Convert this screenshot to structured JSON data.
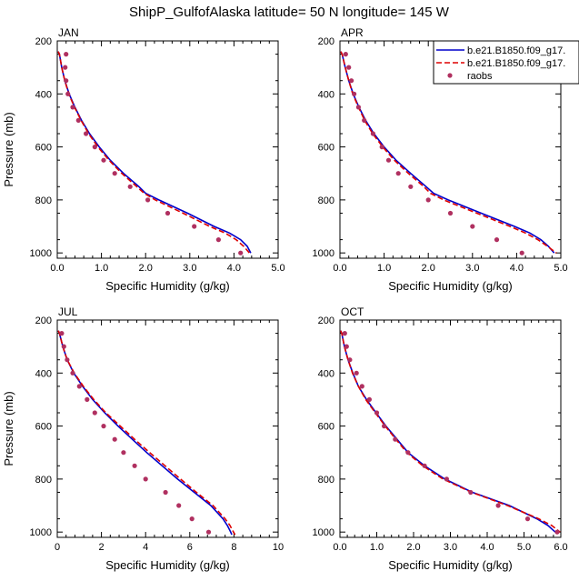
{
  "title": "ShipP_GulfofAlaska  latitude= 50 N longitude= 145 W",
  "legend": {
    "entries": [
      {
        "label": "b.e21.B1850.f09_g17.",
        "style": "solid",
        "color": "#0000cc"
      },
      {
        "label": "b.e21.B1850.f09_g17.",
        "style": "dashed",
        "color": "#dd0000"
      },
      {
        "label": "raobs",
        "style": "dots",
        "color": "#b03060"
      }
    ]
  },
  "colors": {
    "model1": "#0000cc",
    "model2": "#dd0000",
    "obs": "#b03060"
  },
  "chart_data": [
    {
      "type": "line",
      "panel": "JAN",
      "xlabel": "Specific Humidity (g/kg)",
      "ylabel": "Pressure (mb)",
      "xlim": [
        0,
        5
      ],
      "ylim": [
        200,
        1020
      ],
      "xticks": [
        0,
        1,
        2,
        3,
        4,
        5
      ],
      "xtick_labels": [
        "0.0",
        "1.0",
        "2.0",
        "3.0",
        "4.0",
        "5.0"
      ],
      "yticks": [
        200,
        400,
        600,
        800,
        1000
      ],
      "ytick_labels": [
        "200",
        "400",
        "600",
        "800",
        "1000"
      ],
      "p": [
        240,
        250,
        300,
        350,
        400,
        450,
        500,
        550,
        600,
        650,
        700,
        750,
        775,
        800,
        850,
        900,
        925,
        950,
        975,
        1000
      ],
      "series": [
        {
          "name": "b.e21.B1850.f09_g17.",
          "values": [
            0.02,
            0.05,
            0.1,
            0.17,
            0.27,
            0.4,
            0.55,
            0.73,
            0.95,
            1.2,
            1.5,
            1.85,
            2.0,
            2.3,
            2.95,
            3.55,
            3.9,
            4.15,
            4.3,
            4.38
          ]
        },
        {
          "name": "b.e21.B1850.f09_g17.",
          "values": [
            0.02,
            0.05,
            0.1,
            0.17,
            0.26,
            0.39,
            0.54,
            0.71,
            0.92,
            1.17,
            1.46,
            1.8,
            1.97,
            2.22,
            2.85,
            3.45,
            3.8,
            4.05,
            4.22,
            4.35
          ]
        }
      ],
      "obs": {
        "p": [
          250,
          300,
          350,
          400,
          450,
          500,
          550,
          600,
          650,
          700,
          750,
          800,
          850,
          900,
          950,
          1000
        ],
        "values": [
          0.2,
          0.18,
          0.2,
          0.24,
          0.35,
          0.48,
          0.65,
          0.85,
          1.05,
          1.3,
          1.65,
          2.05,
          2.5,
          3.1,
          3.65,
          4.15
        ]
      }
    },
    {
      "type": "line",
      "panel": "APR",
      "xlabel": "Specific Humidity (g/kg)",
      "ylabel": "",
      "xlim": [
        0,
        5
      ],
      "ylim": [
        200,
        1020
      ],
      "xticks": [
        0,
        1,
        2,
        3,
        4,
        5
      ],
      "xtick_labels": [
        "0.0",
        "1.0",
        "2.0",
        "3.0",
        "4.0",
        "5.0"
      ],
      "yticks": [
        200,
        400,
        600,
        800,
        1000
      ],
      "ytick_labels": [
        "200",
        "400",
        "600",
        "800",
        "1000"
      ],
      "p": [
        240,
        250,
        300,
        350,
        400,
        450,
        500,
        550,
        600,
        650,
        700,
        750,
        775,
        800,
        850,
        900,
        925,
        950,
        975,
        1000
      ],
      "series": [
        {
          "name": "b.e21.B1850.f09_g17.",
          "values": [
            0.02,
            0.05,
            0.12,
            0.2,
            0.3,
            0.43,
            0.58,
            0.77,
            1.0,
            1.27,
            1.6,
            1.95,
            2.12,
            2.45,
            3.2,
            3.95,
            4.3,
            4.55,
            4.72,
            4.85
          ]
        },
        {
          "name": "b.e21.B1850.f09_g17.",
          "values": [
            0.02,
            0.05,
            0.12,
            0.2,
            0.29,
            0.42,
            0.56,
            0.74,
            0.97,
            1.23,
            1.55,
            1.9,
            2.05,
            2.35,
            3.1,
            3.85,
            4.2,
            4.48,
            4.7,
            4.9
          ]
        }
      ],
      "obs": {
        "p": [
          250,
          300,
          350,
          400,
          450,
          500,
          550,
          600,
          650,
          700,
          750,
          800,
          850,
          900,
          950,
          1000
        ],
        "values": [
          0.13,
          0.2,
          0.26,
          0.32,
          0.42,
          0.55,
          0.75,
          0.95,
          1.1,
          1.32,
          1.6,
          2.0,
          2.5,
          3.0,
          3.55,
          4.12
        ]
      }
    },
    {
      "type": "line",
      "panel": "JUL",
      "xlabel": "Specific Humidity (g/kg)",
      "ylabel": "Pressure (mb)",
      "xlim": [
        0,
        10
      ],
      "ylim": [
        200,
        1020
      ],
      "xticks": [
        0,
        2,
        4,
        6,
        8,
        10
      ],
      "xtick_labels": [
        "0",
        "2",
        "4",
        "6",
        "8",
        "10"
      ],
      "yticks": [
        200,
        400,
        600,
        800,
        1000
      ],
      "ytick_labels": [
        "200",
        "400",
        "600",
        "800",
        "1000"
      ],
      "p": [
        240,
        250,
        300,
        350,
        400,
        450,
        500,
        550,
        600,
        650,
        700,
        750,
        800,
        850,
        900,
        950,
        975,
        1000,
        1010
      ],
      "series": [
        {
          "name": "b.e21.B1850.f09_g17.",
          "values": [
            0.05,
            0.1,
            0.25,
            0.45,
            0.75,
            1.15,
            1.6,
            2.15,
            2.75,
            3.4,
            4.05,
            4.75,
            5.45,
            6.2,
            6.95,
            7.5,
            7.7,
            7.85,
            7.9
          ]
        },
        {
          "name": "b.e21.B1850.f09_g17.",
          "values": [
            0.05,
            0.1,
            0.25,
            0.45,
            0.77,
            1.18,
            1.65,
            2.2,
            2.85,
            3.5,
            4.18,
            4.88,
            5.58,
            6.3,
            7.05,
            7.6,
            7.82,
            7.98,
            8.05
          ]
        }
      ],
      "obs": {
        "p": [
          250,
          300,
          350,
          400,
          450,
          500,
          550,
          600,
          650,
          700,
          750,
          800,
          850,
          900,
          950,
          1000
        ],
        "values": [
          0.2,
          0.3,
          0.45,
          0.7,
          1.0,
          1.35,
          1.7,
          2.1,
          2.6,
          3.0,
          3.5,
          4.0,
          4.9,
          5.5,
          6.1,
          6.85
        ]
      }
    },
    {
      "type": "line",
      "panel": "OCT",
      "xlabel": "Specific Humidity (g/kg)",
      "ylabel": "",
      "xlim": [
        0,
        6
      ],
      "ylim": [
        200,
        1020
      ],
      "xticks": [
        0,
        1,
        2,
        3,
        4,
        5,
        6
      ],
      "xtick_labels": [
        "0.0",
        "1.0",
        "2.0",
        "3.0",
        "4.0",
        "5.0",
        "6.0"
      ],
      "yticks": [
        200,
        400,
        600,
        800,
        1000
      ],
      "ytick_labels": [
        "200",
        "400",
        "600",
        "800",
        "1000"
      ],
      "p": [
        240,
        250,
        300,
        350,
        400,
        450,
        500,
        550,
        600,
        650,
        700,
        750,
        800,
        850,
        900,
        950,
        975,
        1000
      ],
      "series": [
        {
          "name": "b.e21.B1850.f09_g17.",
          "values": [
            0.02,
            0.05,
            0.12,
            0.22,
            0.35,
            0.5,
            0.72,
            0.98,
            1.25,
            1.55,
            1.85,
            2.3,
            2.85,
            3.6,
            4.6,
            5.35,
            5.65,
            5.85
          ]
        },
        {
          "name": "b.e21.B1850.f09_g17.",
          "values": [
            0.02,
            0.05,
            0.12,
            0.22,
            0.34,
            0.5,
            0.7,
            0.96,
            1.23,
            1.52,
            1.82,
            2.25,
            2.8,
            3.58,
            4.55,
            5.4,
            5.75,
            5.98
          ]
        }
      ],
      "obs": {
        "p": [
          250,
          300,
          350,
          400,
          450,
          500,
          550,
          600,
          650,
          700,
          750,
          800,
          850,
          900,
          950,
          1000
        ],
        "values": [
          0.13,
          0.18,
          0.27,
          0.45,
          0.6,
          0.8,
          1.0,
          1.2,
          1.5,
          1.85,
          2.3,
          2.9,
          3.55,
          4.3,
          5.1,
          5.9
        ]
      }
    }
  ]
}
